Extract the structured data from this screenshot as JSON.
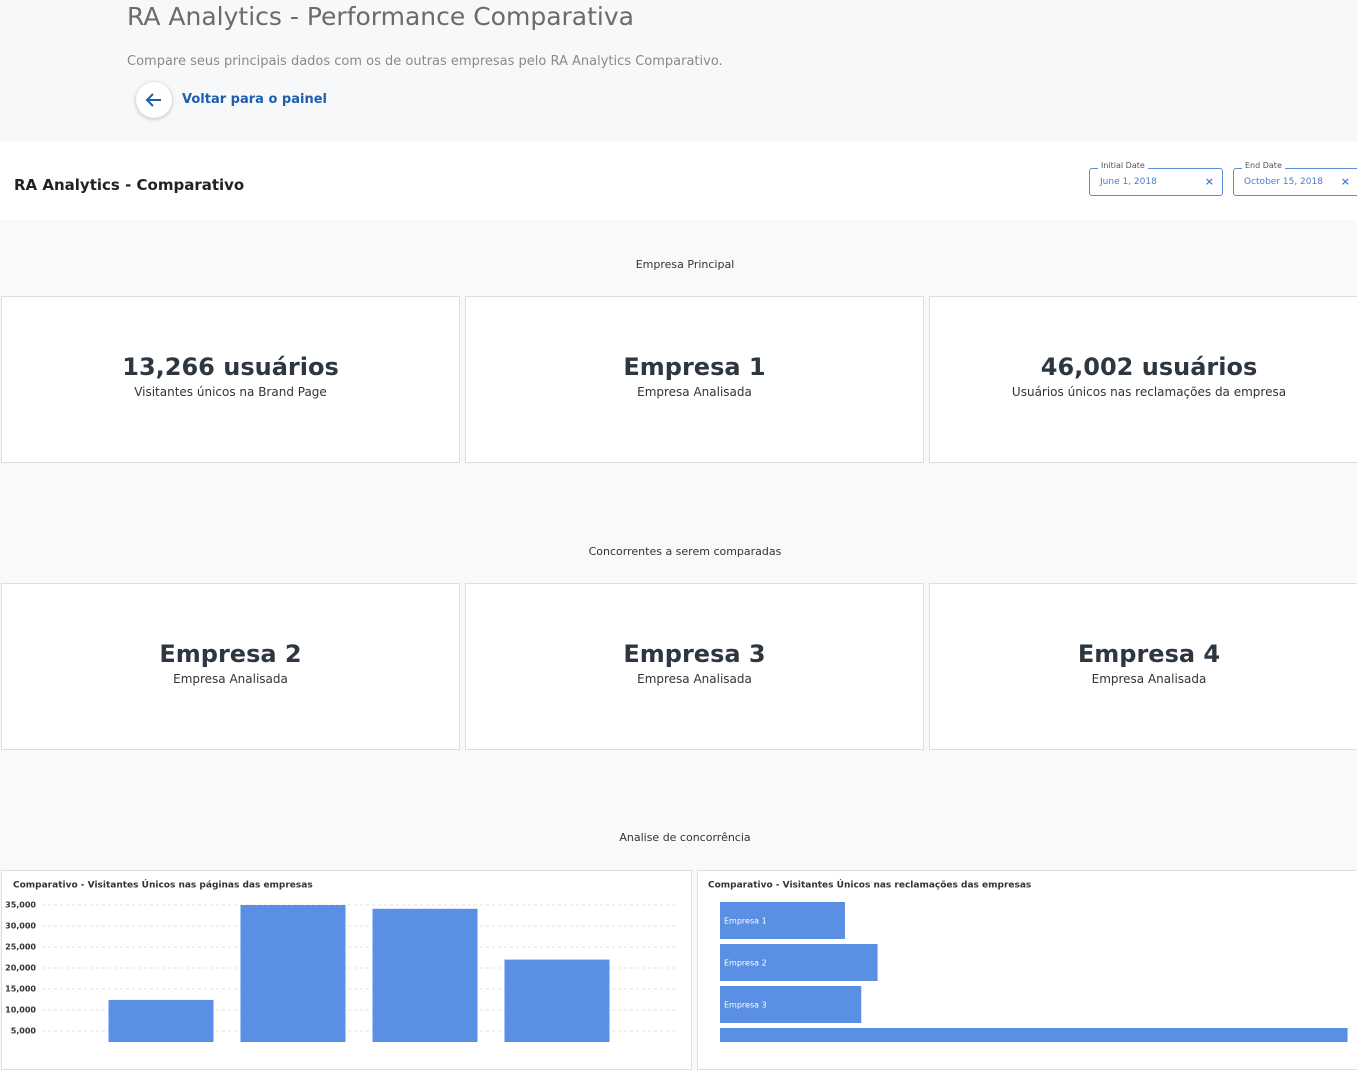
{
  "header": {
    "title": "RA Analytics - Performance Comparativa",
    "subtitle": "Compare seus principais dados com os de outras empresas pelo RA Analytics Comparativo.",
    "back_link": "Voltar para o painel"
  },
  "toolbar": {
    "title": "RA Analytics - Comparativo",
    "filters": [
      {
        "label": "Initial Date",
        "value": "June 1, 2018"
      },
      {
        "label": "End Date",
        "value": "October 15, 2018"
      }
    ]
  },
  "sections": [
    {
      "title": "Empresa Principal",
      "cards": [
        {
          "value": "13,266 usuários",
          "caption": "Visitantes únicos na Brand Page"
        },
        {
          "value": "Empresa 1",
          "caption": "Empresa Analisada"
        },
        {
          "value": "46,002 usuários",
          "caption": "Usuários únicos nas reclamações da empresa"
        }
      ]
    },
    {
      "title": "Concorrentes a serem comparadas",
      "cards": [
        {
          "value": "Empresa 2",
          "caption": "Empresa Analisada"
        },
        {
          "value": "Empresa 3",
          "caption": "Empresa Analisada"
        },
        {
          "value": "Empresa 4",
          "caption": "Empresa Analisada"
        }
      ]
    },
    {
      "title": "Analise de concorrência"
    }
  ],
  "chart_data": [
    {
      "type": "bar",
      "title": "Comparativo - Visitantes Únicos nas páginas das empresas",
      "categories": [
        null,
        null,
        null,
        null
      ],
      "values": [
        12400,
        35000,
        34100,
        22000
      ],
      "color": "#5a8fe3",
      "ylim": [
        0,
        36000
      ],
      "yticks": [
        {
          "value": 5000,
          "label": "5,000"
        },
        {
          "value": 10000,
          "label": "10,000"
        },
        {
          "value": 15000,
          "label": "15,000"
        },
        {
          "value": 20000,
          "label": "20,000"
        },
        {
          "value": 25000,
          "label": "25,000"
        },
        {
          "value": 30000,
          "label": "30,000"
        },
        {
          "value": 35000,
          "label": "35,000"
        }
      ],
      "grid": true
    },
    {
      "type": "barh",
      "title": "Comparativo - Visitantes Únicos nas reclamações das empresas",
      "categories": [
        "Empresa 1",
        "Empresa 2",
        "Empresa 3",
        null
      ],
      "values": [
        46000,
        58000,
        52000,
        231000
      ],
      "color": "#5a8fe3",
      "xlim": [
        0,
        233000
      ]
    }
  ]
}
